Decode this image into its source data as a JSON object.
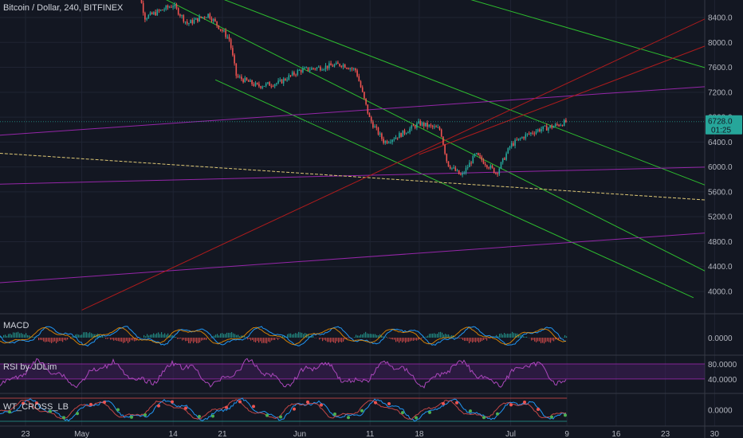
{
  "header": {
    "title": "Bitcoin / Dollar, 240, BITFINEX"
  },
  "panes": {
    "macd": {
      "label": "MACD",
      "ticks": [
        "0.0000"
      ]
    },
    "rsi": {
      "label": "RSI by JDLim",
      "ticks": [
        "80.0000",
        "40.0000"
      ]
    },
    "wt": {
      "label": "WT_CROSS_LB",
      "ticks": [
        "0.0000"
      ]
    }
  },
  "price_tags": {
    "current": "6728.0",
    "countdown": "01:25"
  },
  "colors": {
    "background": "#131722",
    "grid": "#1f2433",
    "up": "#26a69a",
    "down": "#ef5350",
    "channel_green": "#2fc62f",
    "purple": "#9c27b0",
    "yellow": "#e8d17a",
    "red_line": "#b71c1c",
    "rsi_band": "#4a1f66"
  },
  "chart_data": [
    {
      "type": "candlestick",
      "title": "Bitcoin / Dollar, 240, BITFINEX",
      "y_axis_ticks": [
        8400,
        8000,
        7600,
        7200,
        6800,
        6400,
        6000,
        5600,
        5200,
        4800,
        4400,
        4000
      ],
      "x_axis_ticks": [
        "23",
        "May",
        "14",
        "21",
        "Jun",
        "11",
        "18",
        "Jul",
        "9",
        "16",
        "23",
        "30"
      ],
      "ylim": [
        3700,
        8700
      ],
      "last_price": 6728.0,
      "approx_path": [
        {
          "x": "May 8",
          "y": 9300
        },
        {
          "x": "May 10",
          "y": 8400
        },
        {
          "x": "May 14",
          "y": 8600
        },
        {
          "x": "May 16",
          "y": 8300
        },
        {
          "x": "May 19",
          "y": 8450
        },
        {
          "x": "May 22",
          "y": 8050
        },
        {
          "x": "May 23",
          "y": 7450
        },
        {
          "x": "May 26",
          "y": 7300
        },
        {
          "x": "May 29",
          "y": 7350
        },
        {
          "x": "Jun 1",
          "y": 7550
        },
        {
          "x": "Jun 4",
          "y": 7600
        },
        {
          "x": "Jun 7",
          "y": 7650
        },
        {
          "x": "Jun 9",
          "y": 7550
        },
        {
          "x": "Jun 10",
          "y": 7150
        },
        {
          "x": "Jun 11",
          "y": 6750
        },
        {
          "x": "Jun 13",
          "y": 6400
        },
        {
          "x": "Jun 15",
          "y": 6500
        },
        {
          "x": "Jun 18",
          "y": 6700
        },
        {
          "x": "Jun 21",
          "y": 6600
        },
        {
          "x": "Jun 22",
          "y": 6050
        },
        {
          "x": "Jun 24",
          "y": 5850
        },
        {
          "x": "Jun 26",
          "y": 6200
        },
        {
          "x": "Jun 29",
          "y": 5900
        },
        {
          "x": "Jul 1",
          "y": 6350
        },
        {
          "x": "Jul 3",
          "y": 6500
        },
        {
          "x": "Jul 5",
          "y": 6600
        },
        {
          "x": "Jul 7",
          "y": 6650
        },
        {
          "x": "Jul 9",
          "y": 6728
        }
      ],
      "trendlines": [
        {
          "color": "channel_green",
          "from": {
            "x": "Apr 28",
            "y": 10600
          },
          "to": {
            "x": "Jul 30",
            "y": 7550
          }
        },
        {
          "color": "channel_green",
          "from": {
            "x": "May 11",
            "y": 8800
          },
          "to": {
            "x": "Jul 30",
            "y": 4250
          }
        },
        {
          "color": "channel_green",
          "from": {
            "x": "Apr 28",
            "y": 9700
          },
          "to": {
            "x": "Jul 30",
            "y": 5650
          }
        },
        {
          "color": "channel_green",
          "from": {
            "x": "May 20",
            "y": 7400
          },
          "to": {
            "x": "Jul 27",
            "y": 3900
          }
        },
        {
          "color": "purple",
          "from": {
            "x": "Apr 18",
            "y": 6500
          },
          "to": {
            "x": "Jul 30",
            "y": 7300
          }
        },
        {
          "color": "purple",
          "from": {
            "x": "Apr 18",
            "y": 5720
          },
          "to": {
            "x": "Jul 30",
            "y": 6000
          }
        },
        {
          "color": "purple",
          "from": {
            "x": "Apr 18",
            "y": 4130
          },
          "to": {
            "x": "Jul 30",
            "y": 4950
          }
        },
        {
          "color": "yellow",
          "from": {
            "x": "Apr 18",
            "y": 6230
          },
          "to": {
            "x": "Jul 30",
            "y": 5460
          }
        },
        {
          "color": "red_line",
          "from": {
            "x": "May 1",
            "y": 3700
          },
          "to": {
            "x": "Jul 30",
            "y": 8450
          }
        },
        {
          "color": "red_line",
          "from": {
            "x": "Jun 18",
            "y": 6200
          },
          "to": {
            "x": "Jul 30",
            "y": 8000
          }
        }
      ]
    },
    {
      "type": "line",
      "title": "MACD",
      "y_axis_ticks": [
        "0.0000"
      ]
    },
    {
      "type": "line",
      "title": "RSI by JDLim",
      "y_axis_ticks": [
        80,
        40
      ],
      "ylim": [
        10,
        95
      ]
    },
    {
      "type": "line",
      "title": "WT_CROSS_LB",
      "y_axis_ticks": [
        "0.0000"
      ]
    }
  ]
}
